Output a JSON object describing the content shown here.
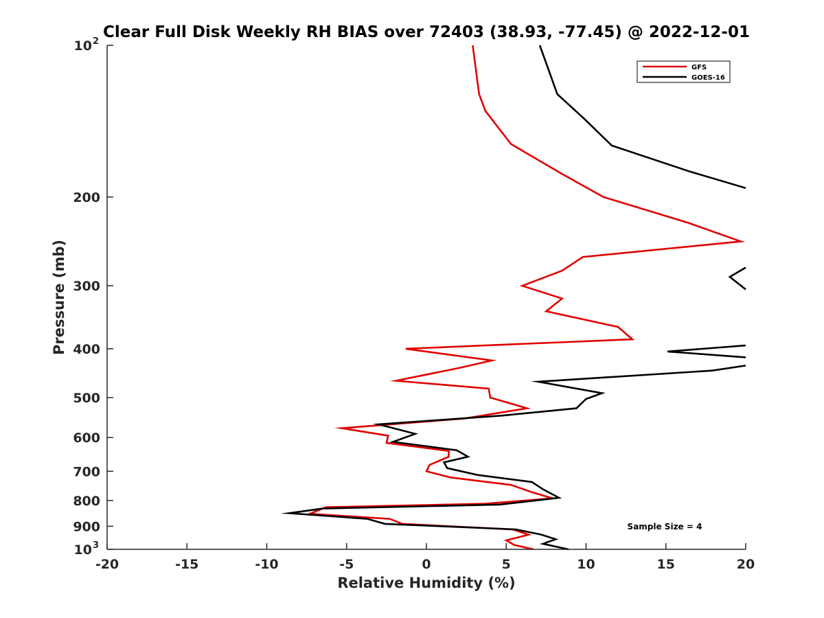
{
  "chart_data": {
    "type": "line",
    "title": "Clear Full Disk Weekly RH BIAS over 72403 (38.93, -77.45) @ 2022-12-01",
    "xlabel": "Relative Humidity (%)",
    "ylabel": "Pressure (mb)",
    "xlim": [
      -20,
      20
    ],
    "ylim": [
      100,
      1000
    ],
    "y_scale": "log",
    "y_reversed": true,
    "grid": false,
    "legend_position": "top-right",
    "x_ticks": [
      "-20",
      "-15",
      "-10",
      "-5",
      "0",
      "5",
      "10",
      "15",
      "20"
    ],
    "y_ticks": [
      {
        "value": 100,
        "base": "10",
        "exp": "2"
      },
      {
        "value": 200,
        "label": "200"
      },
      {
        "value": 300,
        "label": "300"
      },
      {
        "value": 400,
        "label": "400"
      },
      {
        "value": 500,
        "label": "500"
      },
      {
        "value": 600,
        "label": "600"
      },
      {
        "value": 700,
        "label": "700"
      },
      {
        "value": 800,
        "label": "800"
      },
      {
        "value": 900,
        "label": "900"
      },
      {
        "value": 1000,
        "base": "10",
        "exp": "3"
      }
    ],
    "annotation": "Sample Size = 4",
    "series": [
      {
        "name": "GFS",
        "color": "#e00000",
        "points": [
          [
            2.9,
            100
          ],
          [
            3.3,
            125
          ],
          [
            3.7,
            135
          ],
          [
            5.3,
            157
          ],
          [
            8.5,
            180
          ],
          [
            11.1,
            200
          ],
          [
            16.4,
            225
          ],
          [
            19.7,
            245
          ],
          [
            9.8,
            263
          ],
          [
            8.5,
            280
          ],
          [
            6.0,
            300
          ],
          [
            8.5,
            318
          ],
          [
            7.5,
            337
          ],
          [
            12.0,
            362
          ],
          [
            12.9,
            383
          ],
          [
            -1.3,
            400
          ],
          [
            4.1,
            422
          ],
          [
            2.0,
            437
          ],
          [
            -1.9,
            463
          ],
          [
            3.9,
            480
          ],
          [
            4.0,
            500
          ],
          [
            6.3,
            525
          ],
          [
            2.4,
            550
          ],
          [
            -5.3,
            575
          ],
          [
            -2.4,
            595
          ],
          [
            -2.5,
            615
          ],
          [
            1.4,
            638
          ],
          [
            1.4,
            655
          ],
          [
            0.2,
            680
          ],
          [
            0.0,
            700
          ],
          [
            1.5,
            720
          ],
          [
            5.3,
            745
          ],
          [
            6.6,
            770
          ],
          [
            7.9,
            792
          ],
          [
            3.7,
            812
          ],
          [
            -6.3,
            825
          ],
          [
            -7.3,
            850
          ],
          [
            -2.3,
            870
          ],
          [
            -1.5,
            890
          ],
          [
            5.4,
            913
          ],
          [
            6.4,
            935
          ],
          [
            5.0,
            960
          ],
          [
            5.5,
            980
          ],
          [
            6.7,
            1000
          ]
        ]
      },
      {
        "name": "GOES-16",
        "color": "#000000",
        "segments": [
          [
            [
              7.1,
              100
            ],
            [
              8.2,
              125
            ],
            [
              9.9,
              140
            ],
            [
              11.6,
              158
            ],
            [
              16.5,
              178
            ],
            [
              20,
              192
            ]
          ],
          [
            [
              20,
              276
            ],
            [
              19.0,
              288
            ],
            [
              20,
              305
            ]
          ],
          [
            [
              20,
              394
            ],
            [
              15.1,
              405
            ],
            [
              20,
              416
            ]
          ],
          [
            [
              20,
              432
            ],
            [
              17.9,
              442
            ],
            [
              7.0,
              465
            ],
            [
              11.0,
              490
            ],
            [
              10.0,
              503
            ],
            [
              9.4,
              525
            ],
            [
              4.7,
              543
            ],
            [
              -3.0,
              565
            ],
            [
              -0.7,
              590
            ],
            [
              -2.1,
              612
            ],
            [
              1.9,
              636
            ],
            [
              2.6,
              655
            ],
            [
              1.1,
              672
            ],
            [
              1.3,
              690
            ],
            [
              3.2,
              712
            ],
            [
              6.6,
              735
            ],
            [
              7.3,
              760
            ],
            [
              8.3,
              790
            ],
            [
              4.6,
              815
            ],
            [
              -6.5,
              830
            ],
            [
              -8.6,
              848
            ],
            [
              -3.7,
              870
            ],
            [
              -2.6,
              890
            ],
            [
              5.6,
              913
            ],
            [
              7.2,
              935
            ],
            [
              8.1,
              955
            ],
            [
              7.3,
              975
            ],
            [
              8.9,
              1000
            ]
          ]
        ]
      }
    ]
  }
}
